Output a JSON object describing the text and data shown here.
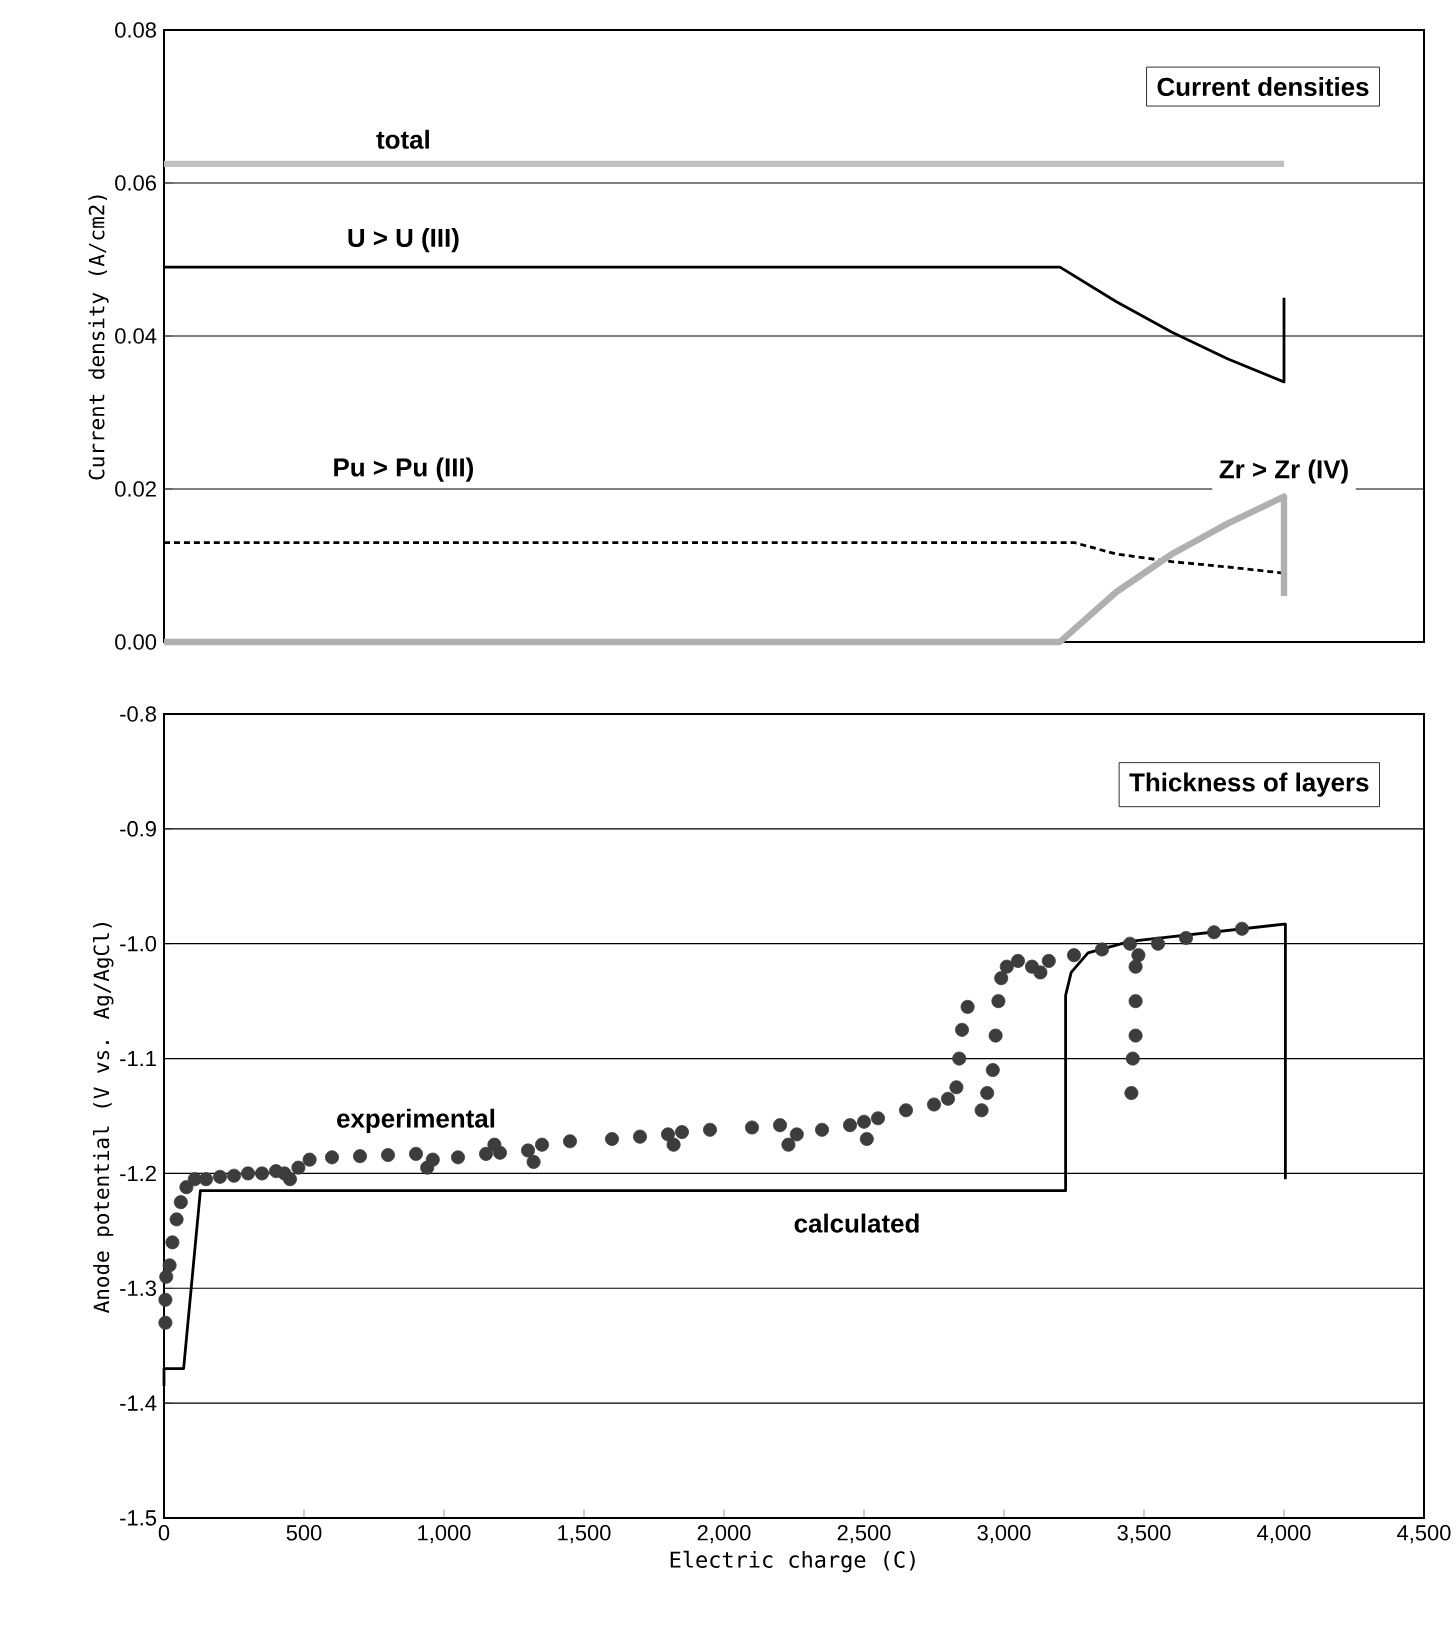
{
  "chart_data": [
    {
      "type": "line",
      "title": "Current densities",
      "ylabel": "Current density (A/cm2)",
      "xlim": [
        0,
        4500
      ],
      "ylim": [
        0,
        0.08
      ],
      "yticks": [
        {
          "value": 0,
          "label": "0.00"
        },
        {
          "value": 0.02,
          "label": "0.02"
        },
        {
          "value": 0.04,
          "label": "0.04"
        },
        {
          "value": 0.06,
          "label": "0.06"
        },
        {
          "value": 0.08,
          "label": "0.08"
        }
      ],
      "tick_labels": "y",
      "grid": "y",
      "legend": false,
      "marker": "none",
      "series": [
        {
          "name": "total",
          "color": "#c0c0c0",
          "x": [
            0,
            4000
          ],
          "values": [
            0.0625,
            0.0625
          ]
        },
        {
          "name": "U > U (III)",
          "color": "#000000",
          "x": [
            0,
            3200,
            3400,
            3600,
            3800,
            4000,
            4000
          ],
          "values": [
            0.049,
            0.049,
            0.0445,
            0.0405,
            0.037,
            0.034,
            0.045
          ]
        },
        {
          "name": "Pu > Pu (III)",
          "color": "#000000",
          "line_style": "dashed",
          "x": [
            0,
            3250,
            3400,
            3600,
            3800,
            4000
          ],
          "values": [
            0.013,
            0.013,
            0.0115,
            0.0105,
            0.0098,
            0.009
          ]
        },
        {
          "name": "Zr > Zr (IV)",
          "color": "#b0b0b0",
          "x": [
            0,
            3200,
            3400,
            3600,
            3800,
            4000,
            4000
          ],
          "values": [
            0,
            0,
            0.0065,
            0.0115,
            0.0155,
            0.019,
            0.006
          ]
        }
      ]
    },
    {
      "type": "line",
      "title": "Thickness of layers",
      "xlabel": "Electric charge (C)",
      "ylabel": "Anode potential (V vs. Ag/AgCl)",
      "xlim": [
        0,
        4500
      ],
      "ylim": [
        -1.5,
        -0.8
      ],
      "xticks": [
        0,
        500,
        {
          "value": 1000,
          "label": "1,000"
        },
        {
          "value": 1500,
          "label": "1,500"
        },
        {
          "value": 2000,
          "label": "2,000"
        },
        {
          "value": 2500,
          "label": "2,500"
        },
        {
          "value": 3000,
          "label": "3,000"
        },
        {
          "value": 3500,
          "label": "3,500"
        },
        {
          "value": 4000,
          "label": "4,000"
        },
        {
          "value": 4500,
          "label": "4,500"
        }
      ],
      "yticks": [
        {
          "value": -1.5,
          "label": "-1.5"
        },
        {
          "value": -1.4,
          "label": "-1.4"
        },
        {
          "value": -1.3,
          "label": "-1.3"
        },
        {
          "value": -1.2,
          "label": "-1.2"
        },
        {
          "value": -1.1,
          "label": "-1.1"
        },
        {
          "value": -1.0,
          "label": "-1.0"
        },
        {
          "value": -0.9,
          "label": "-0.9"
        },
        {
          "value": -0.8,
          "label": "-0.8"
        }
      ],
      "grid": "y",
      "legend": false,
      "marker": "circle",
      "series": [
        {
          "name": "experimental",
          "type": "scatter",
          "color": "#3c3c3c",
          "x": [
            5,
            5,
            8,
            20,
            30,
            45,
            60,
            80,
            110,
            150,
            200,
            250,
            300,
            350,
            400,
            430,
            450,
            480,
            520,
            600,
            700,
            800,
            900,
            940,
            960,
            1050,
            1150,
            1180,
            1200,
            1300,
            1320,
            1350,
            1450,
            1600,
            1700,
            1800,
            1820,
            1850,
            1950,
            2100,
            2200,
            2230,
            2260,
            2350,
            2450,
            2500,
            2510,
            2550,
            2650,
            2750,
            2800,
            2830,
            2840,
            2850,
            2870,
            2920,
            2940,
            2960,
            2970,
            2980,
            2990,
            3010,
            3050,
            3100,
            3130,
            3160,
            3250,
            3350,
            3450,
            3470,
            3470,
            3470,
            3460,
            3455,
            3480,
            3550,
            3650,
            3750,
            3850
          ],
          "values": [
            -1.33,
            -1.31,
            -1.29,
            -1.28,
            -1.26,
            -1.24,
            -1.225,
            -1.212,
            -1.205,
            -1.205,
            -1.203,
            -1.202,
            -1.2,
            -1.2,
            -1.198,
            -1.2,
            -1.205,
            -1.195,
            -1.188,
            -1.186,
            -1.185,
            -1.184,
            -1.183,
            -1.195,
            -1.188,
            -1.186,
            -1.183,
            -1.175,
            -1.182,
            -1.18,
            -1.19,
            -1.175,
            -1.172,
            -1.17,
            -1.168,
            -1.166,
            -1.175,
            -1.164,
            -1.162,
            -1.16,
            -1.158,
            -1.175,
            -1.166,
            -1.162,
            -1.158,
            -1.155,
            -1.17,
            -1.152,
            -1.145,
            -1.14,
            -1.135,
            -1.125,
            -1.1,
            -1.075,
            -1.055,
            -1.145,
            -1.13,
            -1.11,
            -1.08,
            -1.05,
            -1.03,
            -1.02,
            -1.015,
            -1.02,
            -1.025,
            -1.015,
            -1.01,
            -1.005,
            -1.0,
            -1.02,
            -1.05,
            -1.08,
            -1.1,
            -1.13,
            -1.01,
            -1.0,
            -0.995,
            -0.99,
            -0.987
          ]
        },
        {
          "name": "calculated",
          "type": "line",
          "marker": "none",
          "color": "#000000",
          "x": [
            0,
            0,
            70,
            130,
            3220,
            3220,
            3240,
            3300,
            3450,
            4000,
            4005,
            4005
          ],
          "values": [
            -1.385,
            -1.37,
            -1.37,
            -1.215,
            -1.215,
            -1.045,
            -1.025,
            -1.008,
            -0.998,
            -0.983,
            -0.983,
            -1.205
          ]
        }
      ]
    }
  ]
}
